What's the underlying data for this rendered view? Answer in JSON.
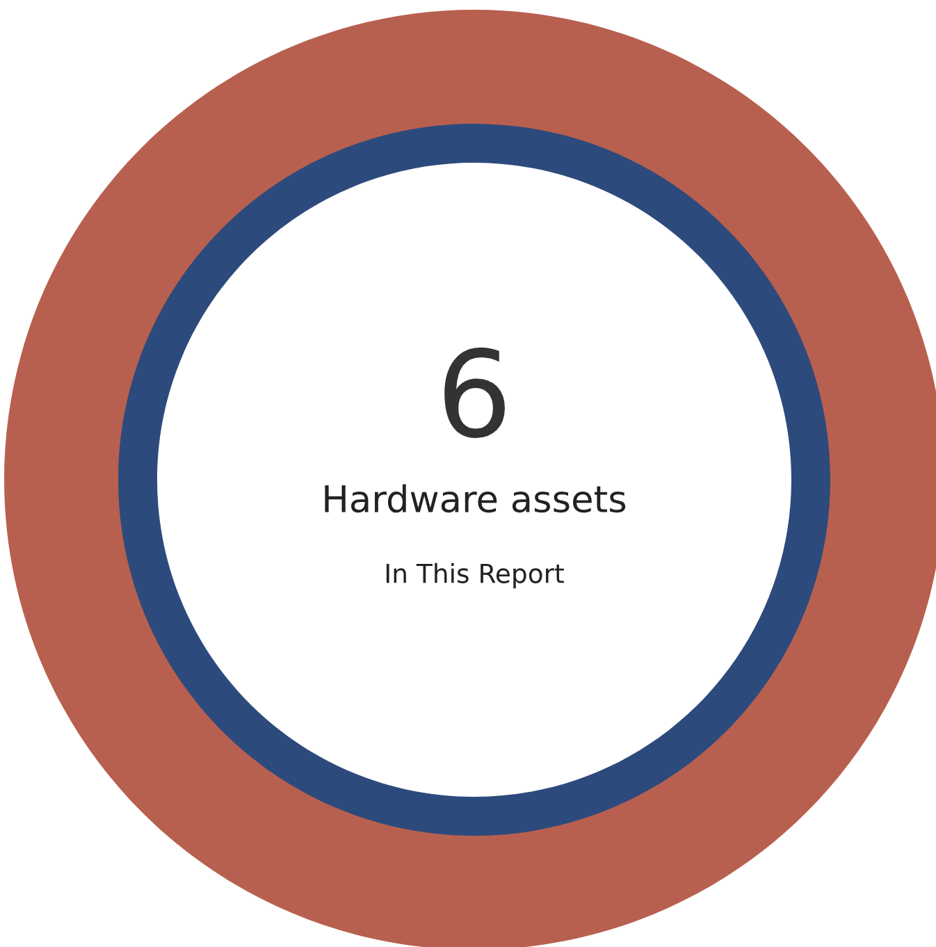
{
  "chart_data": {
    "type": "other",
    "categories": [
      "Hardware assets"
    ],
    "values": [
      6
    ],
    "data_labels": true,
    "annotations": [
      "In This Report"
    ]
  }
}
